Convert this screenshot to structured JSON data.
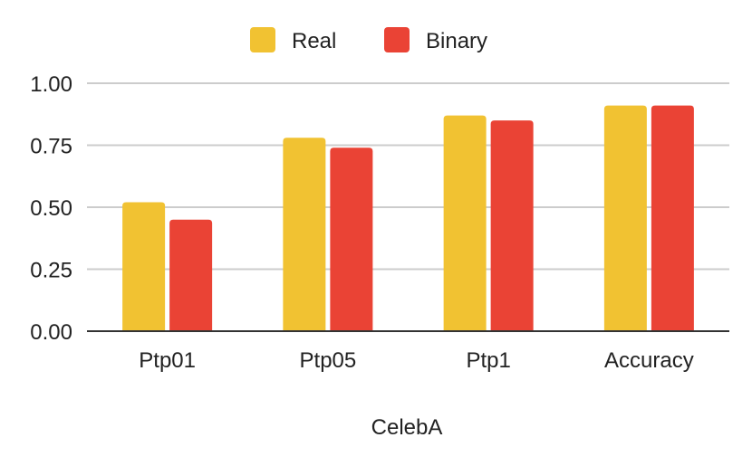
{
  "chart_data": {
    "type": "bar",
    "title": "",
    "xlabel": "CelebA",
    "ylabel": "",
    "categories": [
      "Ptp01",
      "Ptp05",
      "Ptp1",
      "Accuracy"
    ],
    "series": [
      {
        "name": "Real",
        "color": "#F1C232",
        "values": [
          0.52,
          0.78,
          0.87,
          0.91
        ]
      },
      {
        "name": "Binary",
        "color": "#EA4335",
        "values": [
          0.45,
          0.74,
          0.85,
          0.91
        ]
      }
    ],
    "ylim": [
      0,
      1
    ],
    "yticks": [
      "0.00",
      "0.25",
      "0.50",
      "0.75",
      "1.00"
    ],
    "grid": true,
    "legend_position": "top-center"
  }
}
